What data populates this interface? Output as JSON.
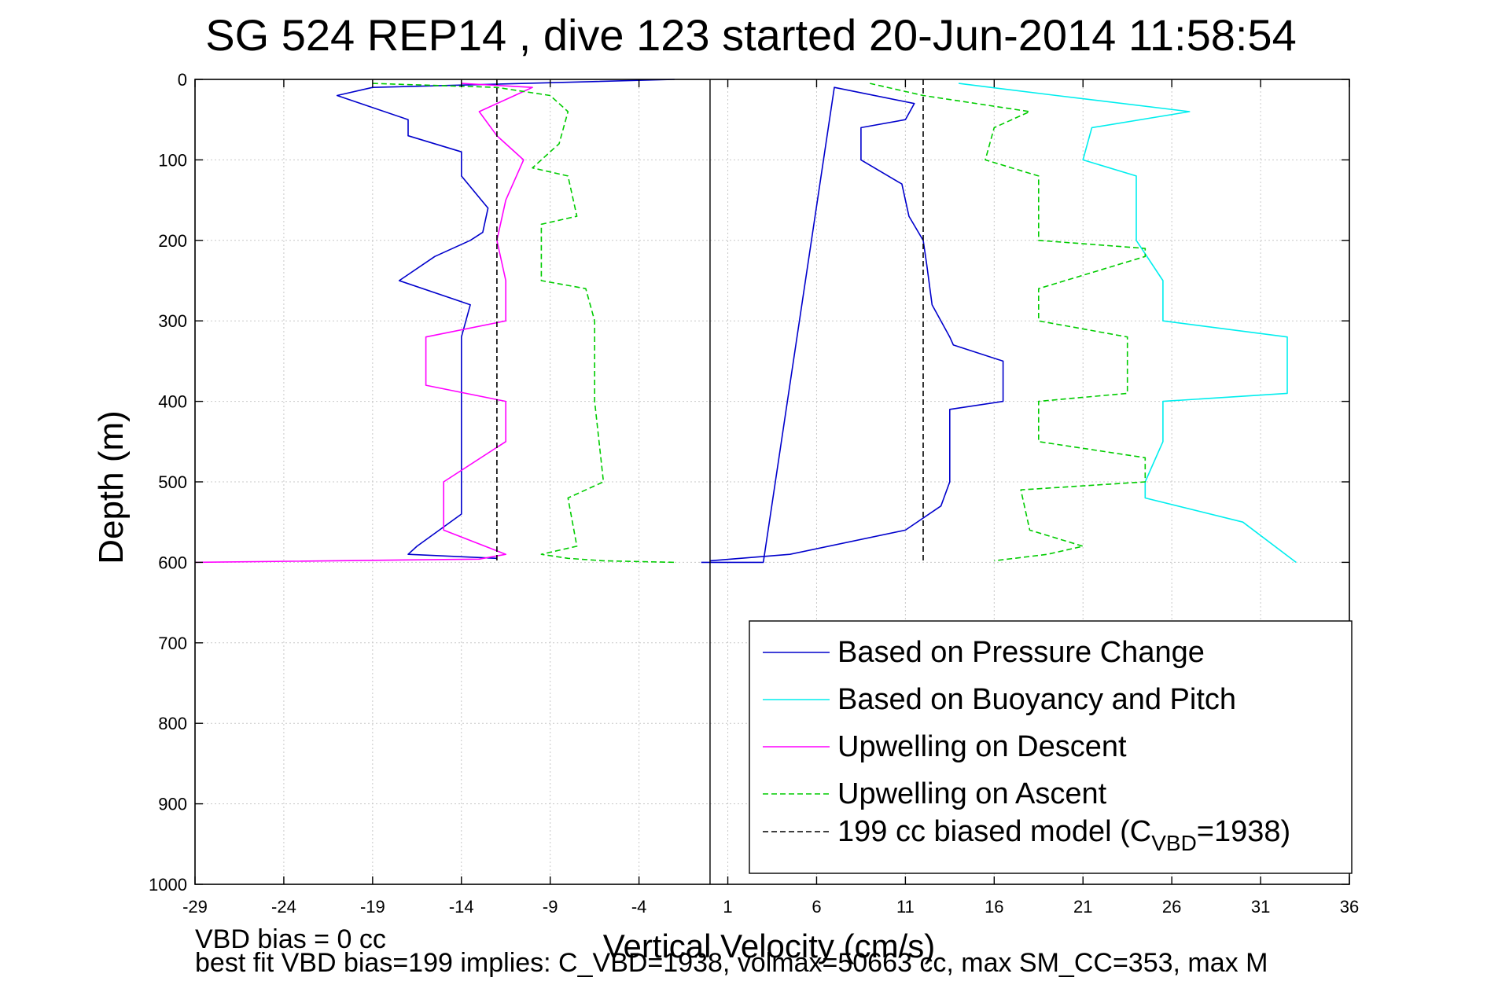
{
  "chart_data": {
    "type": "line",
    "title": "SG 524   REP14  , dive 123 started 20-Jun-2014 11:58:54",
    "xlabel": "Vertical Velocity (cm/s)",
    "ylabel": "Depth (m)",
    "xlim": [
      -29,
      36
    ],
    "ylim": [
      0,
      1000
    ],
    "y_reversed": true,
    "grid": true,
    "legend_position": "lower-right",
    "x_ticks": [
      "-29",
      "-24",
      "-19",
      "-14",
      "-9",
      "-4",
      "1",
      "6",
      "11",
      "16",
      "21",
      "26",
      "31",
      "36"
    ],
    "y_ticks": [
      "0",
      "100",
      "200",
      "300",
      "400",
      "500",
      "600",
      "700",
      "800",
      "900",
      "1000"
    ],
    "zero_line_x": 0,
    "series": [
      {
        "name": "Based on Pressure Change",
        "color": "#0000cc",
        "style": "solid",
        "segments": [
          {
            "x": [
              -2,
              -19,
              -21,
              -17,
              -17,
              -14,
              -14,
              -12.5,
              -12.8,
              -13.5,
              -15.5,
              -17.5,
              -13.5,
              -14,
              -14,
              -14,
              -14,
              -14,
              -14,
              -16.5,
              -17,
              -12
            ],
            "y": [
              0,
              10,
              20,
              50,
              70,
              90,
              120,
              160,
              190,
              200,
              220,
              250,
              280,
              320,
              380,
              450,
              500,
              520,
              540,
              580,
              590,
              595
            ]
          },
          {
            "x": [
              -0.5,
              3,
              7,
              11.5,
              11,
              8.5,
              8.5,
              10.8,
              11.2,
              12,
              12.2,
              12.5,
              13.5,
              13.7,
              16.5,
              16.5,
              13.5,
              13.5,
              13.5,
              13,
              11,
              4.5,
              0
            ],
            "y": [
              600,
              600,
              10,
              30,
              50,
              60,
              100,
              130,
              170,
              200,
              230,
              280,
              320,
              330,
              350,
              400,
              410,
              450,
              500,
              530,
              560,
              590,
              598
            ]
          }
        ]
      },
      {
        "name": "Based on Buoyancy and Pitch",
        "color": "#00eeee",
        "style": "solid",
        "segments": [
          {
            "x": [
              14,
              19.5,
              27,
              21.5,
              21,
              24,
              24,
              24,
              25.5,
              25.5,
              32.5,
              32.5,
              25.5,
              25.5,
              24.5,
              24.5,
              30,
              33
            ],
            "y": [
              5,
              20,
              40,
              60,
              100,
              120,
              150,
              200,
              250,
              300,
              320,
              390,
              400,
              450,
              500,
              520,
              550,
              600
            ]
          }
        ]
      },
      {
        "name": "Upwelling on Descent",
        "color": "#ff00ff",
        "style": "solid",
        "segments": [
          {
            "x": [
              -14,
              -10,
              -11,
              -13,
              -12,
              -10.5,
              -11.5,
              -12,
              -11.5,
              -11.5,
              -16,
              -16,
              -11.5,
              -11.5,
              -15,
              -15,
              -11.5,
              -13,
              -29
            ],
            "y": [
              5,
              10,
              20,
              40,
              70,
              100,
              150,
              200,
              250,
              300,
              320,
              380,
              400,
              450,
              500,
              560,
              590,
              596,
              600
            ]
          }
        ]
      },
      {
        "name": "Upwelling on Ascent",
        "color": "#00cc00",
        "style": "dashed",
        "segments": [
          {
            "x": [
              -19,
              -12,
              -9,
              -8,
              -8.5,
              -10,
              -8,
              -7.5,
              -9.5,
              -9.5,
              -7,
              -6.5,
              -6.5,
              -6,
              -8,
              -7.5,
              -9.5,
              -8,
              -6,
              -2
            ],
            "y": [
              5,
              10,
              20,
              40,
              80,
              110,
              120,
              170,
              180,
              250,
              260,
              300,
              400,
              500,
              520,
              580,
              590,
              595,
              598,
              600
            ]
          },
          {
            "x": [
              9,
              12,
              18,
              16,
              15.5,
              18.5,
              18.5,
              24.5,
              24.5,
              18.5,
              18.5,
              23.5,
              23.5,
              18.5,
              18.5,
              24.5,
              24.5,
              17.5,
              18,
              21,
              19,
              16
            ],
            "y": [
              5,
              20,
              40,
              60,
              100,
              120,
              200,
              210,
              220,
              260,
              300,
              320,
              390,
              400,
              450,
              470,
              500,
              510,
              560,
              580,
              590,
              598
            ]
          }
        ]
      },
      {
        "name": "199 cc biased model (C",
        "name_sub": "VBD",
        "name_tail": "=1938)",
        "color": "#000000",
        "style": "dashed",
        "segments": [
          {
            "x": [
              -12,
              -12
            ],
            "y": [
              0,
              600
            ]
          },
          {
            "x": [
              12,
              12
            ],
            "y": [
              0,
              600
            ]
          }
        ]
      }
    ],
    "footnotes": {
      "line1": "VBD bias = 0 cc",
      "line2": "best fit VBD bias=199 implies: C_VBD=1938, volmax=50663 cc, max SM_CC=353, max M"
    }
  }
}
